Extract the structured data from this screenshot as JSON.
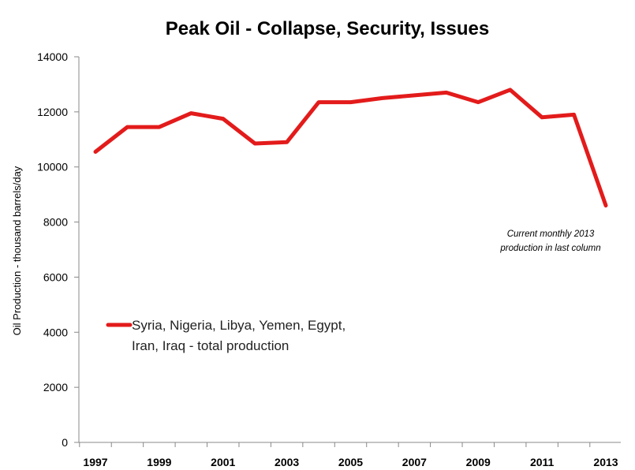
{
  "chart_data": {
    "type": "line",
    "title": "Peak Oil -  Collapse, Security, Issues",
    "ylabel": "Oil  Production  - thousand  barrels/day",
    "xlabel": "",
    "ylim": [
      0,
      14000
    ],
    "yticks": [
      "0",
      "2000",
      "4000",
      "6000",
      "8000",
      "10000",
      "12000",
      "14000"
    ],
    "xticks": [
      "1997",
      "1999",
      "2001",
      "2003",
      "2005",
      "2007",
      "2009",
      "2011",
      "2013"
    ],
    "grid": false,
    "legend_position": "left-middle",
    "series": [
      {
        "name": "Syria, Nigeria, Libya, Yemen, Egypt, Iran, Iraq - total production",
        "color": "#e31b1b",
        "x": [
          "1997",
          "1998",
          "1999",
          "2000",
          "2001",
          "2002",
          "2003",
          "2004",
          "2005",
          "2006",
          "2007",
          "2008",
          "2009",
          "2010",
          "2011",
          "2012",
          "2013"
        ],
        "values": [
          10550,
          11450,
          11450,
          11950,
          11750,
          10850,
          10900,
          12350,
          12350,
          12500,
          12600,
          12700,
          12350,
          12800,
          11800,
          11900,
          8600
        ]
      }
    ],
    "legend_lines": [
      "Syria, Nigeria, Libya, Yemen, Egypt,",
      "Iran, Iraq - total production"
    ],
    "annotation": [
      "Current monthly 2013",
      "production in last column"
    ]
  }
}
